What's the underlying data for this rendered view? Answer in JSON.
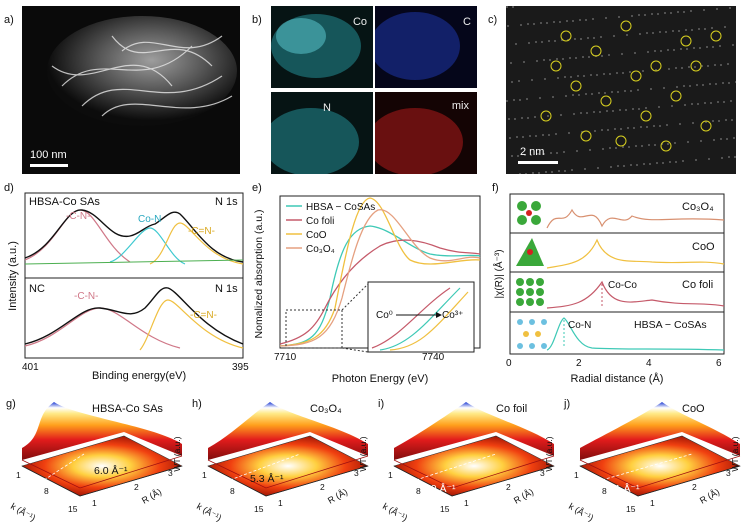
{
  "panels": {
    "a": {
      "label": "a)",
      "scalebar": "100 nm"
    },
    "b": {
      "label": "b)",
      "maps": [
        "Co",
        "C",
        "N",
        "mix"
      ]
    },
    "c": {
      "label": "c)",
      "scalebar": "2 nm"
    },
    "d": {
      "label": "d)",
      "top_sample": "HBSA-Co SAs",
      "bottom_sample": "NC",
      "edge": "N 1s",
      "peaks_top": [
        "-C-N-",
        "Co-N",
        "-C=N-"
      ],
      "peaks_bottom": [
        "-C-N-",
        "-C=N-"
      ],
      "ylabel": "Intensity (a.u.)",
      "xlabel": "Binding energy(eV)",
      "xticks": [
        "401",
        "395"
      ]
    },
    "e": {
      "label": "e)",
      "ylabel": "Nomalized absorption (a.u.)",
      "xlabel": "Photon Energy (eV)",
      "xticks": [
        "7710",
        "7740"
      ],
      "legend": [
        "HBSA − CoSAs",
        "Co foli",
        "CoO",
        "Co₃O₄"
      ],
      "inset_from": "Co⁰",
      "inset_to": "Co³⁺"
    },
    "f": {
      "label": "f)",
      "ylabel": "|χ(R)| (Å⁻³)",
      "xlabel": "Radial distance (Å)",
      "xticks": [
        "0",
        "2",
        "4",
        "6"
      ],
      "rows": [
        "Co₃O₄",
        "CoO",
        "Co foli",
        "HBSA − CoSAs"
      ],
      "annotations": [
        "Co-Co",
        "Co-N"
      ]
    },
    "g": {
      "label": "g)",
      "title": "HBSA-Co SAs",
      "kvalue": "6.0 Å⁻¹"
    },
    "h": {
      "label": "h)",
      "title": "Co₃O₄",
      "kvalue": "5.3 Å⁻¹"
    },
    "i": {
      "label": "i)",
      "title": "Co foil",
      "kvalue": "8.0 Å⁻¹"
    },
    "j": {
      "label": "j)",
      "title": "CoO",
      "kvalue": "7.1 Å⁻¹"
    },
    "wt": {
      "zlabel": "WT (a.u.)",
      "klabel": "k (Å⁻¹)",
      "rlabel": "R (Å)",
      "kticks": [
        "1",
        "8",
        "15"
      ],
      "rticks": [
        "1",
        "2",
        "3"
      ]
    }
  },
  "colors": {
    "hbsa": "#3ec9b6",
    "cofoil": "#c55a6a",
    "coo": "#f0c040",
    "co3o4": "#e5a080",
    "sum": "#111111"
  }
}
